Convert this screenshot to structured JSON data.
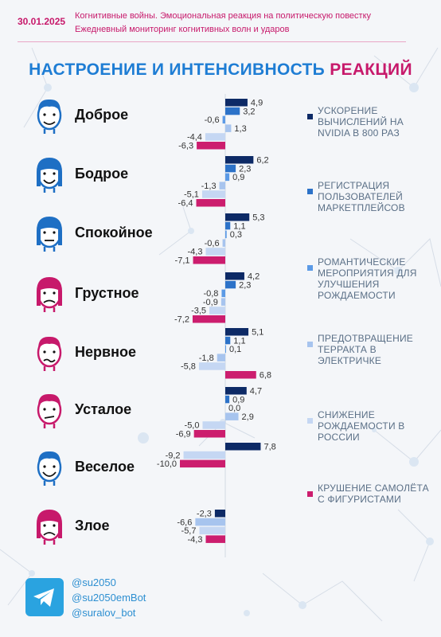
{
  "header": {
    "date": "30.01.2025",
    "line1": "Когнитивные войны. Эмоциональная реакция на политическую повестку",
    "line2": "Ежедневный мониторинг когнитивных волн и ударов"
  },
  "title": {
    "part1": "НАСТРОЕНИЕ И ИНТЕНСИВНОСТЬ",
    "part2": "РЕАКЦИЙ"
  },
  "colors": {
    "navy": "#0d2a66",
    "blue": "#2c72c8",
    "mid": "#5b9ae6",
    "light": "#a7c4ee",
    "pale": "#c5d7f3",
    "pink": "#cc1d6e"
  },
  "chart_data": {
    "type": "bar",
    "categories": [
      "Доброе",
      "Бодрое",
      "Спокойное",
      "Грустное",
      "Нервное",
      "Усталое",
      "Веселое",
      "Злое"
    ],
    "series": [
      {
        "name": "УСКОРЕНИЕ ВЫЧИСЛЕНИЙ НА NVIDIA В 800 РАЗ",
        "values": [
          4.9,
          6.2,
          5.3,
          4.2,
          5.1,
          4.7,
          7.8,
          -2.3
        ]
      },
      {
        "name": "РЕГИСТРАЦИЯ ПОЛЬЗОВАТЕЛЕЙ МАРКЕТПЛЕЙСОВ",
        "values": [
          3.2,
          2.3,
          1.1,
          2.3,
          1.1,
          0.9,
          null,
          null
        ]
      },
      {
        "name": "РОМАНТИЧЕСКИЕ МЕРОПРИЯТИЯ ДЛЯ УЛУЧШЕНИЯ РОЖДАЕМОСТИ",
        "values": [
          -0.6,
          0.9,
          0.3,
          -0.8,
          0.1,
          0.0,
          null,
          null
        ]
      },
      {
        "name": "ПРЕДОТВРАЩЕНИЕ ТЕРРАКТА В ЭЛЕКТРИЧКЕ",
        "values": [
          1.3,
          -1.3,
          -0.6,
          -0.9,
          -1.8,
          2.9,
          null,
          -6.6
        ]
      },
      {
        "name": "СНИЖЕНИЕ РОЖДАЕМОСТИ В РОССИИ",
        "values": [
          -4.4,
          -5.1,
          -4.3,
          -3.5,
          -5.8,
          -5.0,
          -9.2,
          -5.7
        ]
      },
      {
        "name": "КРУШЕНИЕ САМОЛЁТА С ФИГУРИСТАМИ",
        "values": [
          -6.3,
          -6.4,
          -7.1,
          -7.2,
          6.8,
          -6.9,
          -10.0,
          -4.3
        ]
      }
    ],
    "value_labels": [
      [
        "4,9",
        "3,2",
        "-0,6",
        "1,3",
        "-4,4",
        "-6,3"
      ],
      [
        "6,2",
        "2,3",
        "0,9",
        "-1,3",
        "-5,1",
        "-6,4"
      ],
      [
        "5,3",
        "1,1",
        "0,3",
        "-0,6",
        "-4,3",
        "-7,1"
      ],
      [
        "4,2",
        "2,3",
        "-0,8",
        "-0,9",
        "-3,5",
        "-7,2"
      ],
      [
        "5,1",
        "1,1",
        "0,1",
        "-1,8",
        "-5,8",
        "6,8"
      ],
      [
        "4,7",
        "0,9",
        "0,0",
        "2,9",
        "-5,0",
        "-6,9"
      ],
      [
        "7,8",
        null,
        null,
        null,
        "-9,2",
        "-10,0"
      ],
      [
        "-2,3",
        null,
        null,
        "-6,6",
        "-5,7",
        "-4,3"
      ]
    ],
    "legend_position": "right",
    "grid": false
  },
  "moods": [
    {
      "label": "Доброе",
      "icon": "smiling-man-icon",
      "face_color": "#1e6fc4"
    },
    {
      "label": "Бодрое",
      "icon": "cheerful-woman-icon",
      "face_color": "#1e6fc4"
    },
    {
      "label": "Спокойное",
      "icon": "calm-woman-icon",
      "face_color": "#1e6fc4"
    },
    {
      "label": "Грустное",
      "icon": "sad-woman-icon",
      "face_color": "#c7196b"
    },
    {
      "label": "Нервное",
      "icon": "nervous-man-icon",
      "face_color": "#c7196b"
    },
    {
      "label": "Усталое",
      "icon": "tired-man-icon",
      "face_color": "#c7196b"
    },
    {
      "label": "Веселое",
      "icon": "happy-man-icon",
      "face_color": "#1e6fc4"
    },
    {
      "label": "Злое",
      "icon": "angry-woman-icon",
      "face_color": "#c7196b"
    }
  ],
  "footer": {
    "icon": "telegram-icon",
    "handles": [
      "@su2050",
      "@su2050emBot",
      "@suralov_bot"
    ]
  }
}
